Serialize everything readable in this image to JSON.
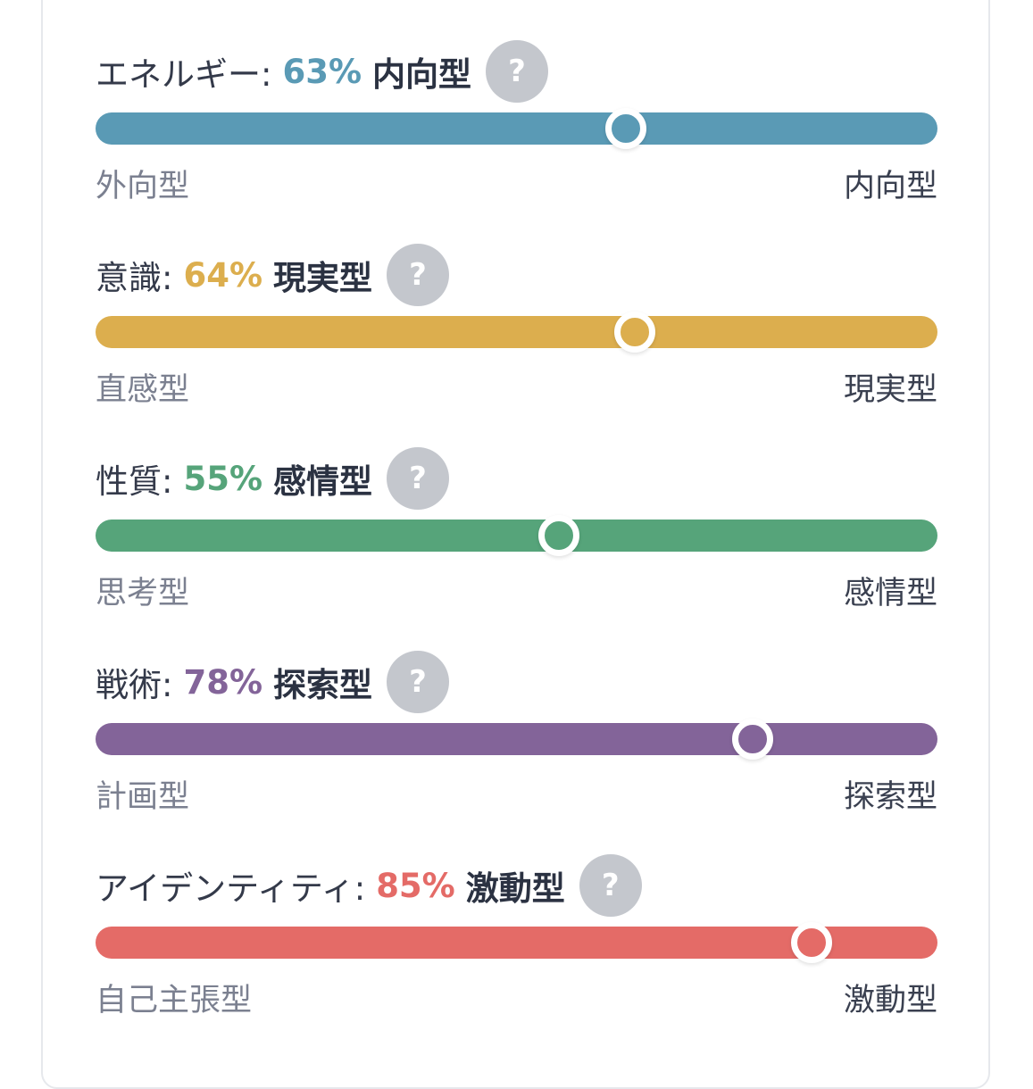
{
  "traits": [
    {
      "name": "エネルギー:",
      "percent": "63%",
      "percent_value": 63,
      "type": "内向型",
      "help": "?",
      "left_label": "外向型",
      "right_label": "内向型",
      "color": "#5a9ab5"
    },
    {
      "name": "意識:",
      "percent": "64%",
      "percent_value": 64,
      "type": "現実型",
      "help": "?",
      "left_label": "直感型",
      "right_label": "現実型",
      "color": "#dcae4e"
    },
    {
      "name": "性質:",
      "percent": "55%",
      "percent_value": 55,
      "type": "感情型",
      "help": "?",
      "left_label": "思考型",
      "right_label": "感情型",
      "color": "#56a47a"
    },
    {
      "name": "戦術:",
      "percent": "78%",
      "percent_value": 78,
      "type": "探索型",
      "help": "?",
      "left_label": "計画型",
      "right_label": "探索型",
      "color": "#836499"
    },
    {
      "name": "アイデンティティ:",
      "percent": "85%",
      "percent_value": 85,
      "type": "激動型",
      "help": "?",
      "left_label": "自己主張型",
      "right_label": "激動型",
      "color": "#e46b67"
    }
  ]
}
